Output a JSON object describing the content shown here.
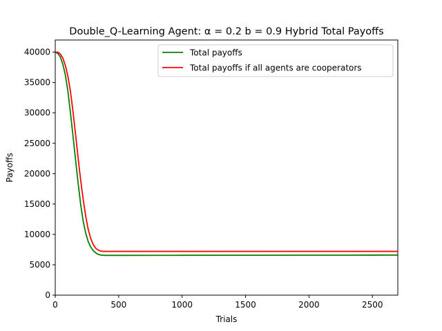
{
  "chart_data": {
    "type": "line",
    "title": "Double_Q-Learning Agent: α = 0.2 b = 0.9 Hybrid Total Payoffs",
    "xlabel": "Trials",
    "ylabel": "Payoffs",
    "xlim": [
      0,
      2700
    ],
    "ylim": [
      0,
      42000
    ],
    "xticks": [
      0,
      500,
      1000,
      1500,
      2000,
      2500
    ],
    "yticks": [
      0,
      5000,
      10000,
      15000,
      20000,
      25000,
      30000,
      35000,
      40000
    ],
    "grid": false,
    "legend_position": "top-right",
    "series": [
      {
        "name": "Total payoffs",
        "color": "#008000",
        "x": [
          0,
          20,
          40,
          60,
          80,
          100,
          120,
          140,
          160,
          180,
          200,
          220,
          240,
          260,
          280,
          300,
          320,
          340,
          360,
          380,
          400,
          450,
          500,
          1000,
          1500,
          2000,
          2500,
          2700
        ],
        "y": [
          40000,
          39800,
          39200,
          38000,
          36200,
          33500,
          30000,
          26200,
          22300,
          18500,
          15000,
          12200,
          10200,
          8800,
          7900,
          7300,
          6950,
          6700,
          6600,
          6560,
          6550,
          6550,
          6550,
          6560,
          6570,
          6580,
          6590,
          6600
        ]
      },
      {
        "name": "Total payoffs if all agents are cooperators",
        "color": "#ff0000",
        "x": [
          0,
          20,
          40,
          60,
          80,
          100,
          120,
          140,
          160,
          180,
          200,
          220,
          240,
          260,
          280,
          300,
          320,
          340,
          360,
          380,
          400,
          450,
          500,
          1000,
          1500,
          2000,
          2500,
          2700
        ],
        "y": [
          40000,
          40000,
          39700,
          39000,
          37800,
          36000,
          33500,
          30200,
          26500,
          22600,
          19000,
          15800,
          13000,
          10800,
          9300,
          8300,
          7700,
          7400,
          7250,
          7200,
          7200,
          7200,
          7200,
          7200,
          7200,
          7200,
          7200,
          7200
        ]
      }
    ]
  }
}
